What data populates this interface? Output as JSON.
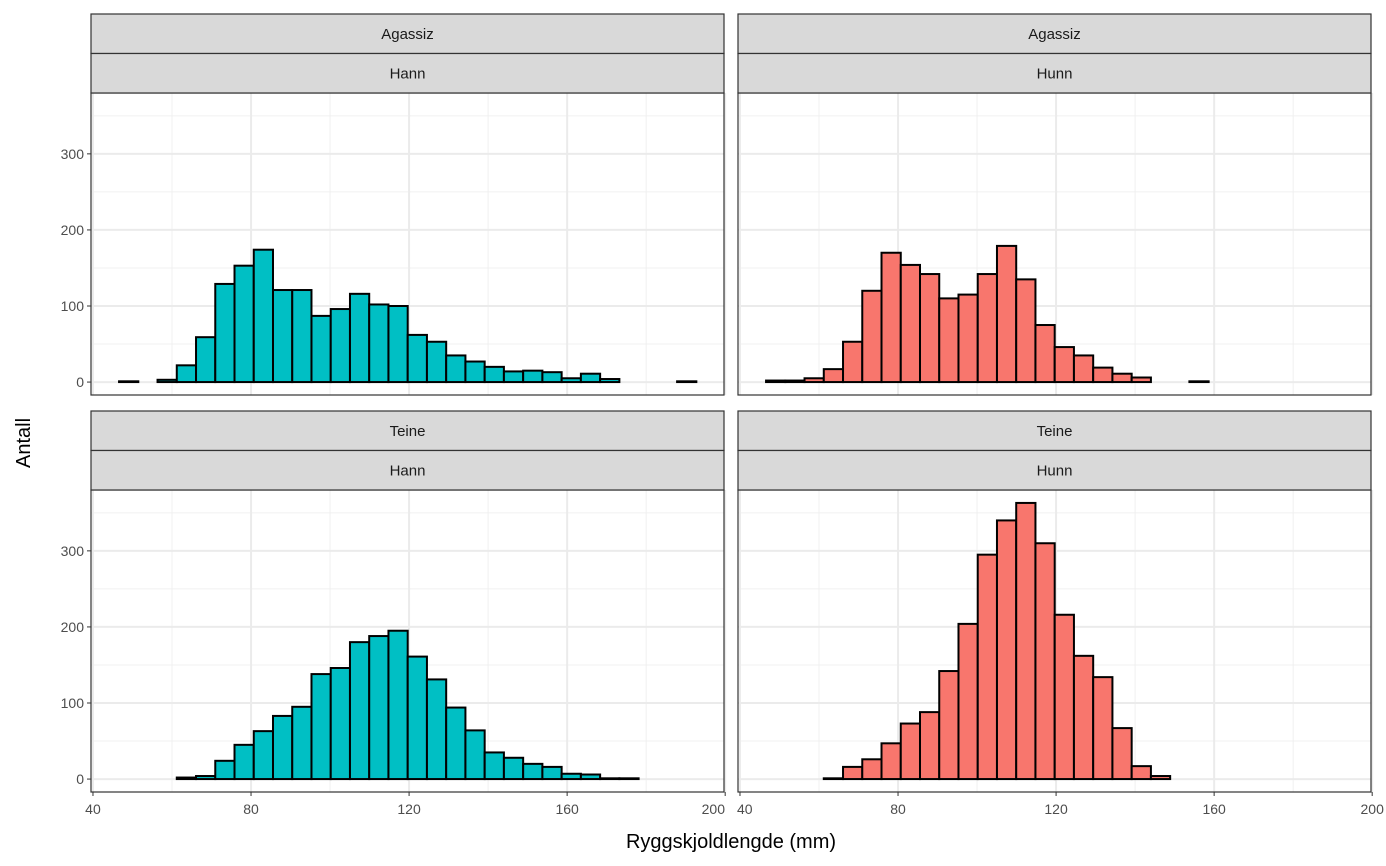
{
  "chart_data": {
    "type": "bar",
    "xlabel": "Ryggskjoldlengde (mm)",
    "ylabel": "Antall",
    "xlim": [
      39.5,
      199.7
    ],
    "ylim": [
      -17,
      380
    ],
    "x_ticks": [
      "40",
      "80",
      "120",
      "160",
      "200"
    ],
    "y_ticks": [
      "0",
      "100",
      "200",
      "300"
    ],
    "grid": true,
    "bin_start": 46.6,
    "bin_width": 4.87,
    "colors": {
      "Hann": "#00BFC4",
      "Hunn": "#F8766D"
    },
    "facets": [
      {
        "row": "Agassiz",
        "col": "Hann",
        "fill": "#00BFC4",
        "values": [
          1,
          0,
          3,
          22,
          59,
          129,
          153,
          174,
          121,
          121,
          87,
          96,
          116,
          102,
          100,
          62,
          53,
          35,
          27,
          20,
          14,
          15,
          13,
          5,
          11,
          4,
          0,
          0,
          0,
          1
        ]
      },
      {
        "row": "Agassiz",
        "col": "Hunn",
        "fill": "#F8766D",
        "values": [
          2,
          2,
          5,
          17,
          53,
          120,
          170,
          154,
          142,
          110,
          115,
          142,
          179,
          135,
          75,
          46,
          35,
          19,
          11,
          6,
          0,
          0,
          1,
          0,
          0,
          0,
          0,
          0,
          0,
          0
        ]
      },
      {
        "row": "Teine",
        "col": "Hann",
        "fill": "#00BFC4",
        "values": [
          0,
          0,
          0,
          2,
          4,
          24,
          45,
          63,
          83,
          95,
          138,
          146,
          180,
          188,
          195,
          161,
          131,
          94,
          64,
          35,
          28,
          20,
          16,
          7,
          6,
          1,
          1,
          0,
          0,
          0
        ]
      },
      {
        "row": "Teine",
        "col": "Hunn",
        "fill": "#F8766D",
        "values": [
          0,
          0,
          0,
          1,
          16,
          26,
          47,
          73,
          88,
          142,
          204,
          295,
          340,
          363,
          310,
          216,
          162,
          134,
          67,
          17,
          4,
          0,
          0,
          0,
          0,
          0,
          0,
          0,
          0,
          0
        ]
      }
    ]
  }
}
